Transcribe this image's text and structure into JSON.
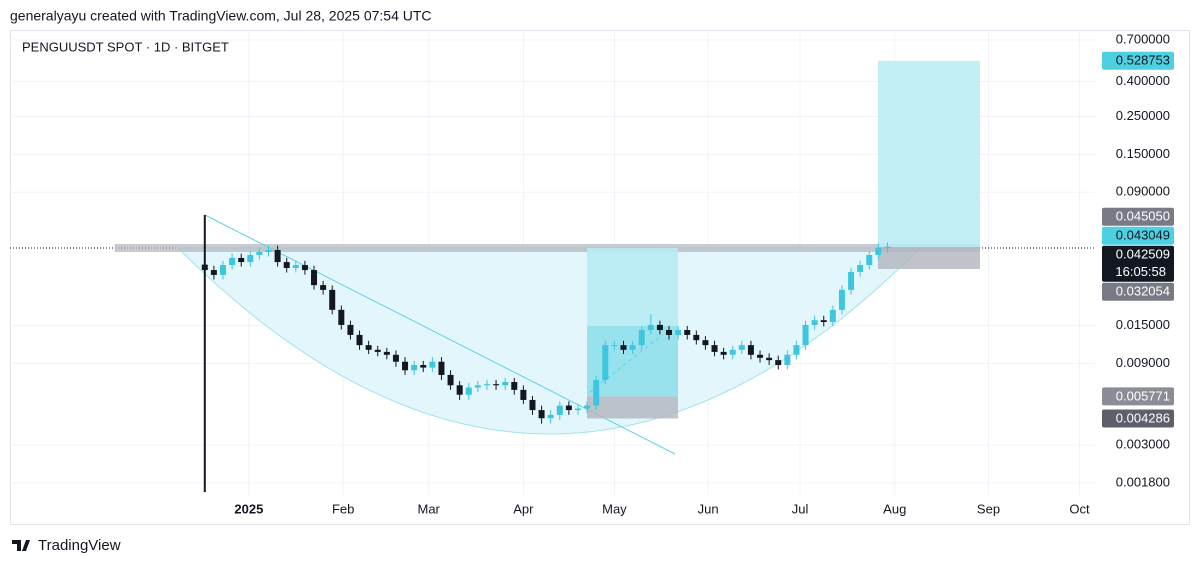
{
  "header": "generalyayu created with TradingView.com, Jul 28, 2025 07:54 UTC",
  "footer": "TradingView",
  "chart_data": {
    "type": "candlestick",
    "title": "PENGUUSDT SPOT · 1D · BITGET",
    "categories": [
      null,
      null,
      null,
      null,
      null,
      null,
      null,
      null,
      null,
      null,
      null,
      null,
      null,
      null,
      null,
      null,
      null,
      null,
      null,
      null,
      null,
      null,
      null,
      null,
      null,
      null,
      null,
      null,
      null,
      null,
      null,
      null,
      null,
      null,
      null,
      null,
      null,
      null,
      null,
      null,
      null,
      null,
      null,
      null,
      null,
      null,
      null,
      null,
      null,
      null,
      null,
      null,
      null,
      null,
      null,
      null,
      null,
      null,
      null,
      null,
      null,
      null,
      null,
      null,
      null,
      null,
      null,
      null,
      null,
      null,
      null,
      null,
      null,
      null,
      null,
      null
    ],
    "open": [
      0.034,
      0.0316,
      0.0296,
      0.0338,
      0.0372,
      0.0352,
      0.0387,
      0.0403,
      0.0414,
      0.0352,
      0.0325,
      0.0338,
      0.0316,
      0.0258,
      0.0242,
      0.0185,
      0.0151,
      0.0132,
      0.0115,
      0.0108,
      0.0105,
      0.0101,
      0.0092,
      0.0082,
      0.0088,
      0.0085,
      0.0092,
      0.0077,
      0.0067,
      0.0059,
      0.0065,
      0.0067,
      0.0068,
      0.0067,
      0.007,
      0.0063,
      0.0055,
      0.0048,
      0.0043,
      0.0045,
      0.0051,
      0.0048,
      0.0049,
      0.0051,
      0.0072,
      0.0115,
      0.0115,
      0.0108,
      0.0115,
      0.0141,
      0.0151,
      0.0141,
      0.0132,
      0.0141,
      0.0132,
      0.0123,
      0.0115,
      0.0105,
      0.0101,
      0.0108,
      0.0115,
      0.0101,
      0.0097,
      0.0094,
      0.0088,
      0.0101,
      0.0115,
      0.0151,
      0.0161,
      0.0157,
      0.0185,
      0.0242,
      0.0308,
      0.0338,
      0.0387,
      0.0426
    ],
    "high": [
      0.0664,
      0.0335,
      0.0358,
      0.0394,
      0.0394,
      0.041,
      0.0427,
      0.0439,
      0.0439,
      0.0373,
      0.0358,
      0.0358,
      0.0335,
      0.0273,
      0.0257,
      0.0196,
      0.016,
      0.014,
      0.0122,
      0.0114,
      0.0111,
      0.0107,
      0.0098,
      0.0093,
      0.0093,
      0.0098,
      0.0098,
      0.0082,
      0.0071,
      0.0069,
      0.0071,
      0.0072,
      0.0072,
      0.0074,
      0.0074,
      0.0067,
      0.0058,
      0.0051,
      0.0048,
      0.0054,
      0.0054,
      0.0052,
      0.0054,
      0.0076,
      0.0122,
      0.0122,
      0.0122,
      0.0122,
      0.0149,
      0.0175,
      0.016,
      0.0149,
      0.0149,
      0.0149,
      0.014,
      0.013,
      0.0122,
      0.0111,
      0.0114,
      0.0122,
      0.0122,
      0.0107,
      0.0103,
      0.01,
      0.0107,
      0.0122,
      0.016,
      0.0171,
      0.0171,
      0.0196,
      0.0257,
      0.0326,
      0.0358,
      0.041,
      0.0452,
      0.0459
    ],
    "low": [
      0.00159,
      0.0278,
      0.0278,
      0.0318,
      0.0331,
      0.0331,
      0.0364,
      0.0379,
      0.0331,
      0.0306,
      0.0306,
      0.0297,
      0.0243,
      0.0227,
      0.0174,
      0.0142,
      0.0124,
      0.0108,
      0.0102,
      0.0099,
      0.0095,
      0.0086,
      0.0077,
      0.0077,
      0.008,
      0.008,
      0.0072,
      0.0063,
      0.0055,
      0.0055,
      0.0061,
      0.0063,
      0.0063,
      0.0063,
      0.0059,
      0.0052,
      0.0045,
      0.004,
      0.004,
      0.0042,
      0.0045,
      0.0045,
      0.0046,
      0.0048,
      0.0068,
      0.0108,
      0.0102,
      0.0102,
      0.0108,
      0.0133,
      0.0133,
      0.0124,
      0.0124,
      0.0124,
      0.0116,
      0.0108,
      0.0099,
      0.0095,
      0.0095,
      0.0102,
      0.0095,
      0.0091,
      0.0088,
      0.0083,
      0.0083,
      0.0095,
      0.0108,
      0.0142,
      0.0148,
      0.0148,
      0.0174,
      0.0227,
      0.029,
      0.0318,
      0.0364,
      0.04
    ],
    "close": [
      0.0316,
      0.0296,
      0.0338,
      0.0372,
      0.0352,
      0.0387,
      0.0403,
      0.0414,
      0.0352,
      0.0325,
      0.0338,
      0.0316,
      0.0258,
      0.0242,
      0.0185,
      0.0151,
      0.0132,
      0.0115,
      0.0108,
      0.0105,
      0.0101,
      0.0092,
      0.0082,
      0.0088,
      0.0085,
      0.0092,
      0.0077,
      0.0067,
      0.0059,
      0.0065,
      0.0067,
      0.0068,
      0.0067,
      0.007,
      0.0063,
      0.0055,
      0.0048,
      0.0043,
      0.0045,
      0.0051,
      0.0048,
      0.0049,
      0.0051,
      0.0072,
      0.0115,
      0.0115,
      0.0108,
      0.0115,
      0.0141,
      0.0151,
      0.0141,
      0.0132,
      0.0141,
      0.0132,
      0.0123,
      0.0115,
      0.0105,
      0.0101,
      0.0108,
      0.0115,
      0.0101,
      0.0097,
      0.0094,
      0.0088,
      0.0101,
      0.0115,
      0.0151,
      0.0161,
      0.0157,
      0.0185,
      0.0242,
      0.0308,
      0.0338,
      0.0387,
      0.0426,
      0.0433
    ],
    "up_color": "#3ec6df",
    "down_color": "#131722",
    "log_scale": true,
    "grid": true,
    "ylim": [
      0.00153,
      0.8
    ],
    "yticks": [
      {
        "value": 0.7,
        "label": "0.700000"
      },
      {
        "value": 0.4,
        "label": "0.400000"
      },
      {
        "value": 0.25,
        "label": "0.250000"
      },
      {
        "value": 0.15,
        "label": "0.150000"
      },
      {
        "value": 0.09,
        "label": "0.090000"
      },
      {
        "value": 0.015,
        "label": "0.015000"
      },
      {
        "value": 0.009,
        "label": "0.009000"
      },
      {
        "value": 0.003,
        "label": "0.003000"
      },
      {
        "value": 0.0018,
        "label": "0.001800"
      }
    ],
    "xlim": [
      -21.4,
      97.8
    ],
    "xticks": [
      {
        "value": 4.84,
        "label": "2025"
      },
      {
        "value": 15.2,
        "label": "Feb"
      },
      {
        "value": 24.6,
        "label": "Mar"
      },
      {
        "value": 35.0,
        "label": "Apr"
      },
      {
        "value": 45.0,
        "label": "May"
      },
      {
        "value": 55.3,
        "label": "Jun"
      },
      {
        "value": 65.4,
        "label": "Jul"
      },
      {
        "value": 75.8,
        "label": "Aug"
      },
      {
        "value": 86.1,
        "label": "Sep"
      },
      {
        "value": 96.1,
        "label": "Oct"
      }
    ],
    "price_labels": [
      {
        "value": 0.528753,
        "label": "0.528753",
        "color": "#4dd0e1"
      },
      {
        "value": 0.04505,
        "label": "0.045050",
        "color": "#787b86"
      },
      {
        "value": 0.043049,
        "label": "0.043049",
        "color": "#4dd0e1"
      },
      {
        "value": 0.042509,
        "label": "0.042509",
        "color": "#131722",
        "countdown": "16:05:58"
      },
      {
        "value": 0.032054,
        "label": "0.032054",
        "color": "#787b86"
      },
      {
        "value": 0.005771,
        "label": "0.005771",
        "color": "#8a8d96"
      },
      {
        "value": 0.004286,
        "label": "0.004286",
        "color": "#5d606b"
      }
    ]
  }
}
